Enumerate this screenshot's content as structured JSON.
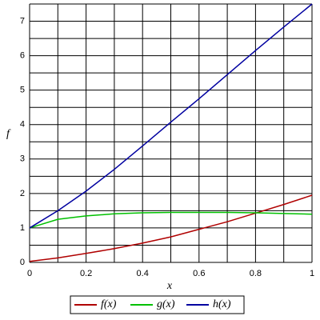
{
  "chart_data": {
    "type": "line",
    "xlabel": "x",
    "ylabel": "f",
    "x": [
      0,
      0.1,
      0.2,
      0.3,
      0.4,
      0.5,
      0.6,
      0.7,
      0.8,
      0.9,
      1
    ],
    "series": [
      {
        "name": "f(x)",
        "color": "#b00000",
        "values": [
          0.03,
          0.13,
          0.26,
          0.4,
          0.56,
          0.74,
          0.96,
          1.18,
          1.43,
          1.68,
          1.95
        ]
      },
      {
        "name": "g(x)",
        "color": "#00c000",
        "values": [
          1,
          1.25,
          1.35,
          1.41,
          1.44,
          1.45,
          1.45,
          1.45,
          1.44,
          1.42,
          1.4
        ]
      },
      {
        "name": "h(x)",
        "color": "#0000a0",
        "values": [
          1,
          1.5,
          2.07,
          2.7,
          3.38,
          4.07,
          4.75,
          5.45,
          6.15,
          6.83,
          7.5
        ]
      }
    ],
    "xlim": [
      0,
      1
    ],
    "ylim": [
      0,
      7.5
    ],
    "xticks": [
      0,
      0.2,
      0.4,
      0.6,
      0.8,
      1
    ],
    "yticks": [
      0,
      1,
      2,
      3,
      4,
      5,
      6,
      7
    ],
    "x_grid": [
      0.1,
      0.3,
      0.5,
      0.7,
      0.9
    ],
    "y_grid": [
      0.5,
      1.5,
      2.5,
      3.5,
      4.5,
      5.5,
      6.5,
      7.5
    ],
    "grid": true,
    "legend": "bottom"
  }
}
